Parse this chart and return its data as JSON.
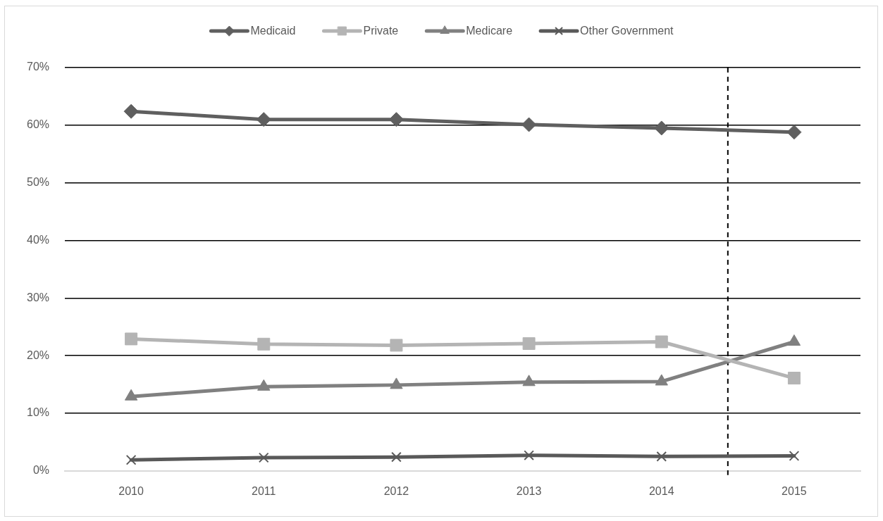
{
  "chart_data": {
    "type": "line",
    "x": [
      2010,
      2011,
      2012,
      2013,
      2014,
      2015
    ],
    "series": [
      {
        "name": "Medicaid",
        "color": "#5f5f5f",
        "marker": "diamond",
        "values": [
          62.4,
          61.0,
          61.0,
          60.1,
          59.5,
          58.8
        ]
      },
      {
        "name": "Private",
        "color": "#b4b4b4",
        "marker": "square",
        "values": [
          22.9,
          22.0,
          21.8,
          22.1,
          22.4,
          16.1
        ]
      },
      {
        "name": "Medicare",
        "color": "#808080",
        "marker": "triangle",
        "values": [
          12.9,
          14.6,
          14.9,
          15.4,
          15.5,
          22.4
        ]
      },
      {
        "name": "Other Government",
        "color": "#595959",
        "marker": "cross",
        "values": [
          1.9,
          2.3,
          2.4,
          2.7,
          2.5,
          2.6
        ]
      }
    ],
    "xlim": [
      2009.5,
      2015.5
    ],
    "xticks": [
      2010,
      2011,
      2012,
      2013,
      2014,
      2015
    ],
    "ylim": [
      0,
      70
    ],
    "yticks": [
      {
        "value": 0,
        "label": "0%"
      },
      {
        "value": 10,
        "label": "10%"
      },
      {
        "value": 20,
        "label": "20%"
      },
      {
        "value": 30,
        "label": "30%"
      },
      {
        "value": 40,
        "label": "40%"
      },
      {
        "value": 50,
        "label": "50%"
      },
      {
        "value": 60,
        "label": "60%"
      },
      {
        "value": 70,
        "label": "70%"
      }
    ],
    "ref_lines": [
      {
        "axis": "x",
        "value": 2014.5,
        "color": "#000000",
        "line_style": "dashed"
      }
    ],
    "grid": "y",
    "legend": "top",
    "line_style": "solid"
  }
}
